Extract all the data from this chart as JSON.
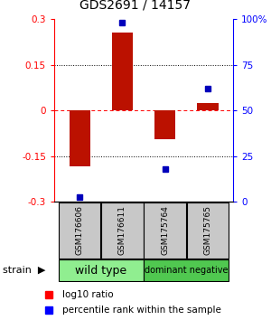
{
  "title": "GDS2691 / 14157",
  "samples": [
    "GSM176606",
    "GSM176611",
    "GSM175764",
    "GSM175765"
  ],
  "log10_ratio": [
    -0.185,
    0.255,
    -0.095,
    0.025
  ],
  "percentile_rank": [
    2.5,
    98.0,
    18.0,
    62.0
  ],
  "ylim": [
    -0.3,
    0.3
  ],
  "y2lim": [
    0,
    100
  ],
  "yticks": [
    -0.3,
    -0.15,
    0.0,
    0.15,
    0.3
  ],
  "y2ticks": [
    0,
    25,
    50,
    75,
    100
  ],
  "ytick_labels": [
    "-0.3",
    "-0.15",
    "0",
    "0.15",
    "0.3"
  ],
  "y2tick_labels": [
    "0",
    "25",
    "50",
    "75",
    "100%"
  ],
  "bar_color": "#BB1100",
  "dot_color": "#0000BB",
  "bar_width": 0.5,
  "legend_red_label": "log10 ratio",
  "legend_blue_label": "percentile rank within the sample",
  "strain_label": "strain",
  "wt_color": "#90EE90",
  "dn_color": "#50C850",
  "sample_box_color": "#C8C8C8",
  "title_fontsize": 10,
  "tick_fontsize": 7.5,
  "sample_fontsize": 6.5,
  "group_fontsize": 9,
  "legend_fontsize": 7.5,
  "strain_fontsize": 8
}
